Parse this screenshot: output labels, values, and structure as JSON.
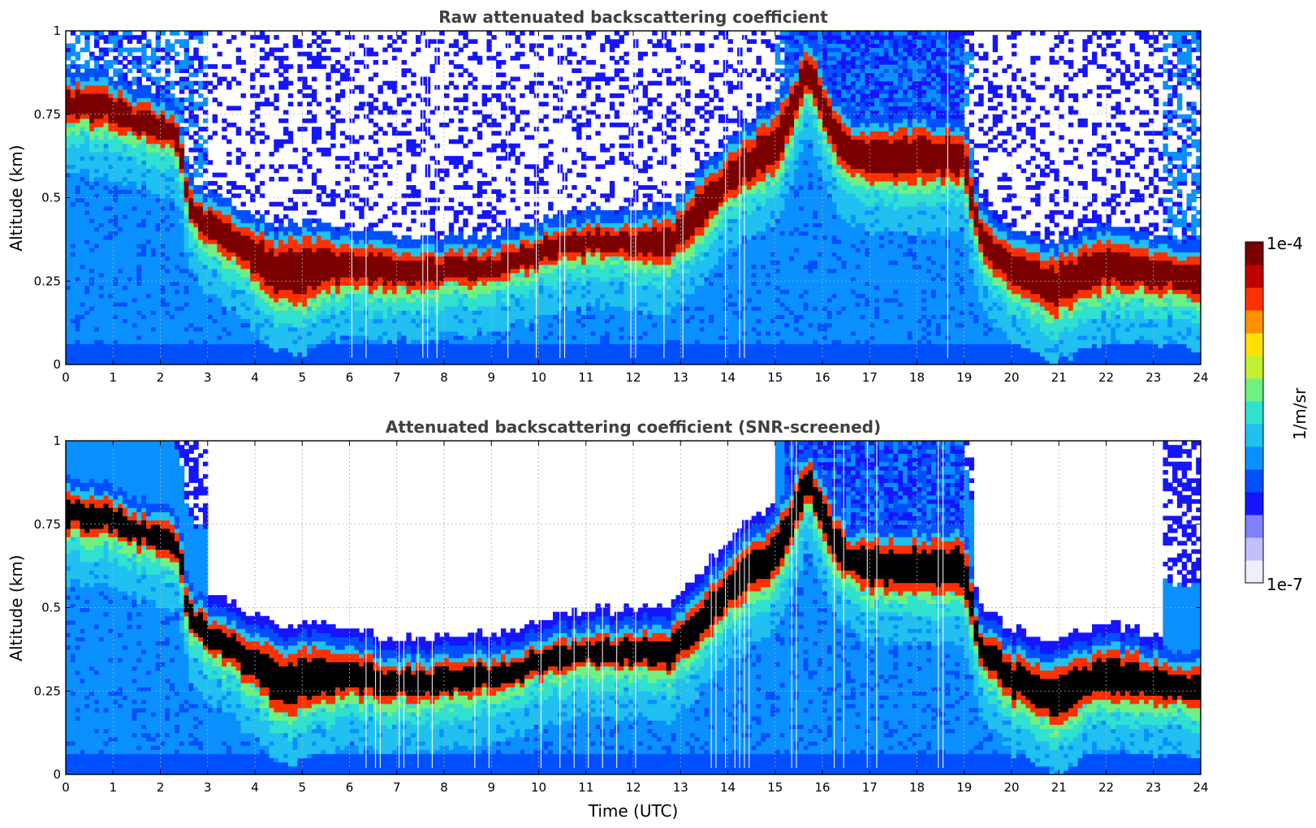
{
  "chart_data": [
    {
      "type": "heatmap",
      "title": "Raw attenuated backscattering coefficient",
      "ylabel": "Altitude (km)",
      "xlabel": "",
      "x_ticks": [
        "0",
        "1",
        "2",
        "3",
        "4",
        "5",
        "6",
        "7",
        "8",
        "9",
        "10",
        "11",
        "12",
        "13",
        "14",
        "15",
        "16",
        "17",
        "18",
        "19",
        "20",
        "21",
        "22",
        "23",
        "24"
      ],
      "y_ticks": [
        "0",
        "0.25",
        "0.5",
        "0.75",
        "1"
      ],
      "xlim": [
        0,
        24
      ],
      "ylim": [
        0,
        1
      ],
      "grid": true,
      "screened": false,
      "layer_altitude_km": {
        "time_utc": [
          0,
          0.5,
          1,
          1.5,
          2,
          2.4,
          2.6,
          3,
          3.5,
          4,
          4.5,
          5,
          5.5,
          6,
          7,
          8,
          9,
          10,
          11,
          12,
          12.8,
          13.2,
          13.6,
          14,
          14.5,
          15,
          15.3,
          15.7,
          16.2,
          16.6,
          17,
          17.5,
          18,
          18.5,
          19,
          19.3,
          19.6,
          20,
          20.5,
          21,
          21.5,
          22,
          22.5,
          23,
          23.5,
          24
        ],
        "top": [
          0.84,
          0.83,
          0.82,
          0.78,
          0.76,
          0.73,
          0.52,
          0.47,
          0.44,
          0.4,
          0.36,
          0.38,
          0.37,
          0.36,
          0.33,
          0.33,
          0.34,
          0.38,
          0.41,
          0.42,
          0.43,
          0.5,
          0.56,
          0.63,
          0.68,
          0.74,
          0.82,
          0.95,
          0.78,
          0.7,
          0.7,
          0.7,
          0.7,
          0.7,
          0.7,
          0.45,
          0.4,
          0.36,
          0.33,
          0.32,
          0.35,
          0.37,
          0.36,
          0.34,
          0.33,
          0.32
        ],
        "bottom": [
          0.73,
          0.72,
          0.71,
          0.68,
          0.66,
          0.63,
          0.43,
          0.37,
          0.32,
          0.26,
          0.18,
          0.19,
          0.22,
          0.23,
          0.22,
          0.23,
          0.25,
          0.29,
          0.32,
          0.32,
          0.31,
          0.36,
          0.42,
          0.49,
          0.54,
          0.58,
          0.66,
          0.84,
          0.64,
          0.58,
          0.55,
          0.55,
          0.55,
          0.55,
          0.55,
          0.34,
          0.28,
          0.22,
          0.19,
          0.15,
          0.2,
          0.22,
          0.22,
          0.22,
          0.21,
          0.2
        ]
      }
    },
    {
      "type": "heatmap",
      "title": "Attenuated backscattering coefficient (SNR-screened)",
      "ylabel": "Altitude (km)",
      "xlabel": "Time (UTC)",
      "x_ticks": [
        "0",
        "1",
        "2",
        "3",
        "4",
        "5",
        "6",
        "7",
        "8",
        "9",
        "10",
        "11",
        "12",
        "13",
        "14",
        "15",
        "16",
        "17",
        "18",
        "19",
        "20",
        "21",
        "22",
        "23",
        "24"
      ],
      "y_ticks": [
        "0",
        "0.25",
        "0.5",
        "0.75",
        "1"
      ],
      "xlim": [
        0,
        24
      ],
      "ylim": [
        0,
        1
      ],
      "grid": true,
      "screened": true
    }
  ],
  "colorbar": {
    "label": "1/m/sr",
    "max_label": "1e-4",
    "min_label": "1e-7",
    "scale": "log",
    "range": [
      1e-07,
      0.0001
    ],
    "colormap": [
      "#eeeefe",
      "#c0c0ff",
      "#8080ff",
      "#1515ff",
      "#0050ff",
      "#0a90ff",
      "#20c0f0",
      "#30e0d0",
      "#70f080",
      "#c0f030",
      "#ffe000",
      "#ff9000",
      "#ff3000",
      "#c00000",
      "#7a0000"
    ]
  },
  "colors": {
    "layer_core": "#7a0000",
    "layer_core_screened": "#000000",
    "background_low": "#1f7fee",
    "noise_blue": "#1414ff"
  }
}
